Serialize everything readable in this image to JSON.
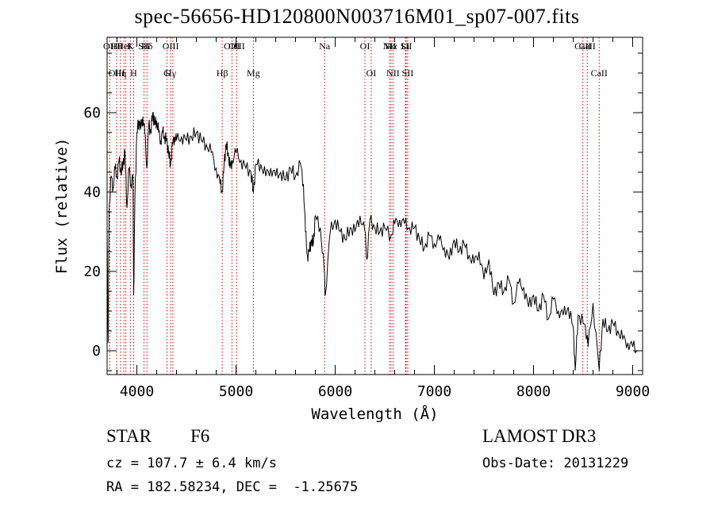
{
  "title": "spec-56656-HD120800N003716M01_sp07-007.fits",
  "info": {
    "class": "STAR",
    "subclass": "F6",
    "survey": "LAMOST DR3",
    "cz": "cz = 107.7 ± 6.4 km/s",
    "obs_date": "Obs-Date: 20131229",
    "coords": "RA = 182.58234, DEC =  -1.25675"
  },
  "chart_data": {
    "type": "line",
    "title": "spec-56656-HD120800N003716M01_sp07-007.fits",
    "xlabel": "Wavelength (Å)",
    "ylabel": "Flux (relative)",
    "xlim": [
      3700,
      9100
    ],
    "ylim": [
      -6,
      79
    ],
    "xticks": [
      4000,
      5000,
      6000,
      7000,
      8000,
      9000
    ],
    "yticks": [
      0,
      20,
      40,
      60
    ],
    "line_color": "#000000",
    "marker_color": "#cc0000",
    "series": [
      {
        "x": [
          3700,
          3710,
          3720,
          3740,
          3760,
          3780,
          3800,
          3820,
          3840,
          3860,
          3880,
          3900,
          3920,
          3940,
          3960,
          3968,
          3980,
          4000,
          4020,
          4040,
          4060,
          4080,
          4101,
          4120,
          4140,
          4160,
          4180,
          4200,
          4220,
          4240,
          4260,
          4280,
          4300,
          4320,
          4340,
          4360,
          4380,
          4400,
          4450,
          4500,
          4550,
          4600,
          4650,
          4700,
          4750,
          4800,
          4840,
          4861,
          4880,
          4900,
          4920,
          4940,
          4960,
          5000,
          5050,
          5100,
          5150,
          5175,
          5200,
          5250,
          5300,
          5350,
          5400,
          5450,
          5500,
          5550,
          5600,
          5650,
          5680,
          5700,
          5720,
          5740,
          5760,
          5780,
          5800,
          5850,
          5890,
          5900,
          5950,
          6000,
          6050,
          6100,
          6150,
          6200,
          6250,
          6300,
          6320,
          6350,
          6400,
          6450,
          6500,
          6563,
          6600,
          6650,
          6700,
          6750,
          6800,
          6850,
          6900,
          6950,
          7000,
          7050,
          7100,
          7150,
          7200,
          7250,
          7300,
          7350,
          7400,
          7450,
          7500,
          7550,
          7600,
          7650,
          7700,
          7750,
          7800,
          7850,
          7900,
          7950,
          8000,
          8050,
          8100,
          8150,
          8200,
          8250,
          8300,
          8350,
          8400,
          8420,
          8450,
          8500,
          8542,
          8550,
          8600,
          8662,
          8700,
          8750,
          8800,
          8850,
          8900,
          8950,
          9000,
          9050
        ],
        "y": [
          30,
          2,
          35,
          44,
          41,
          46,
          44,
          48,
          45,
          47,
          50,
          36,
          46,
          42,
          44,
          14,
          38,
          55,
          58,
          56,
          59,
          55,
          46,
          57,
          55,
          60,
          57,
          58,
          55,
          53,
          55,
          54,
          53,
          50,
          47,
          52,
          54,
          53,
          54,
          53,
          54,
          55,
          53,
          52,
          50,
          46,
          42,
          40,
          47,
          52,
          50,
          46,
          48,
          50,
          48,
          46,
          45,
          40,
          47,
          47,
          44,
          46,
          44,
          45,
          43,
          46,
          44,
          47,
          42,
          30,
          24,
          25,
          28,
          27,
          34,
          31,
          20,
          14,
          30,
          33,
          30,
          28,
          31,
          30,
          34,
          30,
          23,
          33,
          31,
          30,
          31,
          29,
          32,
          33,
          32,
          31,
          31,
          28,
          26,
          29,
          27,
          28,
          26,
          23,
          28,
          25,
          27,
          24,
          22,
          25,
          18,
          23,
          14,
          17,
          15,
          18,
          12,
          17,
          16,
          11,
          14,
          10,
          14,
          8,
          13,
          10,
          9,
          11,
          6,
          -5,
          9,
          7,
          4,
          1,
          12,
          -5,
          8,
          5,
          7,
          5,
          3,
          2,
          1,
          0
        ]
      }
    ],
    "line_markers": [
      {
        "x": 3727,
        "top": "OII",
        "bot": ""
      },
      {
        "x": 3797,
        "top": "Hθ",
        "bot": "OIII"
      },
      {
        "x": 3835,
        "top": "",
        "bot": "Hη"
      },
      {
        "x": 3870,
        "top": "HeI",
        "bot": ""
      },
      {
        "x": 3889,
        "top": "",
        "bot": ""
      },
      {
        "x": 3934,
        "top": "K",
        "bot": ""
      },
      {
        "x": 3968,
        "top": "",
        "bot": "H"
      },
      {
        "x": 4072,
        "top": "SII",
        "bot": ""
      },
      {
        "x": 4102,
        "top": "Hδ",
        "bot": ""
      },
      {
        "x": 4304,
        "top": "",
        "bot": "G"
      },
      {
        "x": 4341,
        "top": "OIII",
        "bot": "Hγ"
      },
      {
        "x": 4363,
        "top": "",
        "bot": ""
      },
      {
        "x": 4861,
        "top": "",
        "bot": "Hβ"
      },
      {
        "x": 4959,
        "top": "OIII",
        "bot": ""
      },
      {
        "x": 5007,
        "top": "OIII",
        "bot": ""
      },
      {
        "x": 5175,
        "top": "",
        "bot": "Mg"
      },
      {
        "x": 5893,
        "top": "Na",
        "bot": ""
      },
      {
        "x": 6300,
        "top": "OI",
        "bot": ""
      },
      {
        "x": 6363,
        "top": "",
        "bot": "OI"
      },
      {
        "x": 6548,
        "top": "NII",
        "bot": ""
      },
      {
        "x": 6563,
        "top": "Hα",
        "bot": ""
      },
      {
        "x": 6583,
        "top": "",
        "bot": "NII"
      },
      {
        "x": 6708,
        "top": "Li",
        "bot": ""
      },
      {
        "x": 6716,
        "top": "SII",
        "bot": ""
      },
      {
        "x": 6731,
        "top": "",
        "bot": "SII"
      },
      {
        "x": 8498,
        "top": "CaII",
        "bot": ""
      },
      {
        "x": 8542,
        "top": "CaII",
        "bot": ""
      },
      {
        "x": 8662,
        "top": "",
        "bot": "CaII"
      }
    ]
  }
}
